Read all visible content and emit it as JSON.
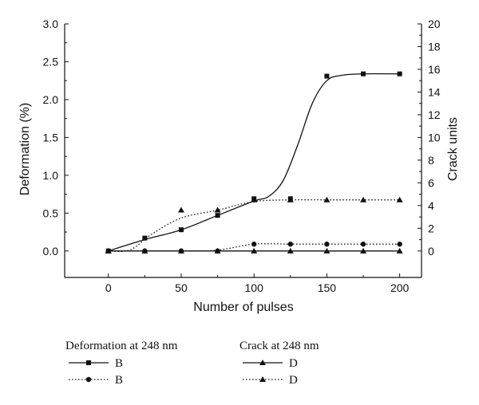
{
  "chart_data": {
    "type": "line",
    "xlabel": "Number of pulses",
    "ylabel_left": "Deformation (%)",
    "ylabel_right": "Crack units",
    "xlim": [
      -30,
      215
    ],
    "ylim_left": [
      -0.35,
      3.0
    ],
    "ylim_right": [
      -2.33,
      20
    ],
    "x_ticks": [
      "0",
      "50",
      "100",
      "150",
      "200"
    ],
    "y_left_ticks": [
      "0.0",
      "0.5",
      "1.0",
      "1.5",
      "2.0",
      "2.5",
      "3.0"
    ],
    "y_right_ticks": [
      "0",
      "2",
      "4",
      "6",
      "8",
      "10",
      "12",
      "14",
      "16",
      "18",
      "20"
    ],
    "legend": {
      "group1_title": "Deformation at 248 nm",
      "group2_title": "Crack at 248 nm",
      "entries": [
        {
          "label": "B",
          "series": "deform_solid"
        },
        {
          "label": "B",
          "series": "deform_dotted"
        },
        {
          "label": "D",
          "series": "crack_solid"
        },
        {
          "label": "D",
          "series": "crack_dotted"
        }
      ]
    },
    "series": [
      {
        "key": "deform_solid",
        "axis": "left",
        "marker": "square",
        "line": "solid",
        "x": [
          0,
          25,
          50,
          75,
          100,
          125,
          150,
          175,
          200
        ],
        "y": [
          0.0,
          0.17,
          0.28,
          0.47,
          0.69,
          0.69,
          2.31,
          2.34,
          2.34
        ],
        "curve_x": [
          0,
          25,
          50,
          75,
          100,
          110,
          120,
          130,
          140,
          150,
          160,
          175,
          200
        ],
        "curve_y": [
          0.0,
          0.15,
          0.28,
          0.47,
          0.66,
          0.72,
          0.93,
          1.4,
          1.95,
          2.25,
          2.32,
          2.34,
          2.34
        ]
      },
      {
        "key": "deform_dotted",
        "axis": "left",
        "marker": "circle",
        "line": "dotted",
        "x": [
          0,
          25,
          50,
          75,
          100,
          125,
          150,
          175,
          200
        ],
        "y": [
          0.0,
          0.0,
          0.0,
          0.0,
          0.09,
          0.09,
          0.09,
          0.09,
          0.09
        ],
        "curve_x": [
          0,
          25,
          50,
          75,
          100,
          125,
          150,
          175,
          200
        ],
        "curve_y": [
          0.0,
          0.0,
          0.0,
          0.01,
          0.09,
          0.09,
          0.09,
          0.09,
          0.09
        ]
      },
      {
        "key": "crack_solid",
        "axis": "right",
        "marker": "triangle",
        "line": "solid",
        "x": [
          0,
          25,
          50,
          75,
          100,
          125,
          150,
          175,
          200
        ],
        "y": [
          0,
          0,
          0,
          0,
          0,
          0,
          0,
          0,
          0
        ],
        "curve_x": [
          0,
          200
        ],
        "curve_y": [
          0,
          0
        ]
      },
      {
        "key": "crack_dotted",
        "axis": "right",
        "marker": "triangle",
        "line": "dotted",
        "x": [
          0,
          50,
          75,
          100,
          125,
          150,
          175,
          200
        ],
        "y": [
          0,
          3.6,
          3.6,
          4.5,
          4.5,
          4.5,
          4.5,
          4.5
        ],
        "curve_x": [
          0,
          15,
          30,
          50,
          75,
          100,
          125,
          150,
          175,
          200
        ],
        "curve_y": [
          0,
          0.1,
          1.5,
          2.9,
          3.6,
          4.35,
          4.5,
          4.5,
          4.5,
          4.5
        ]
      }
    ]
  }
}
